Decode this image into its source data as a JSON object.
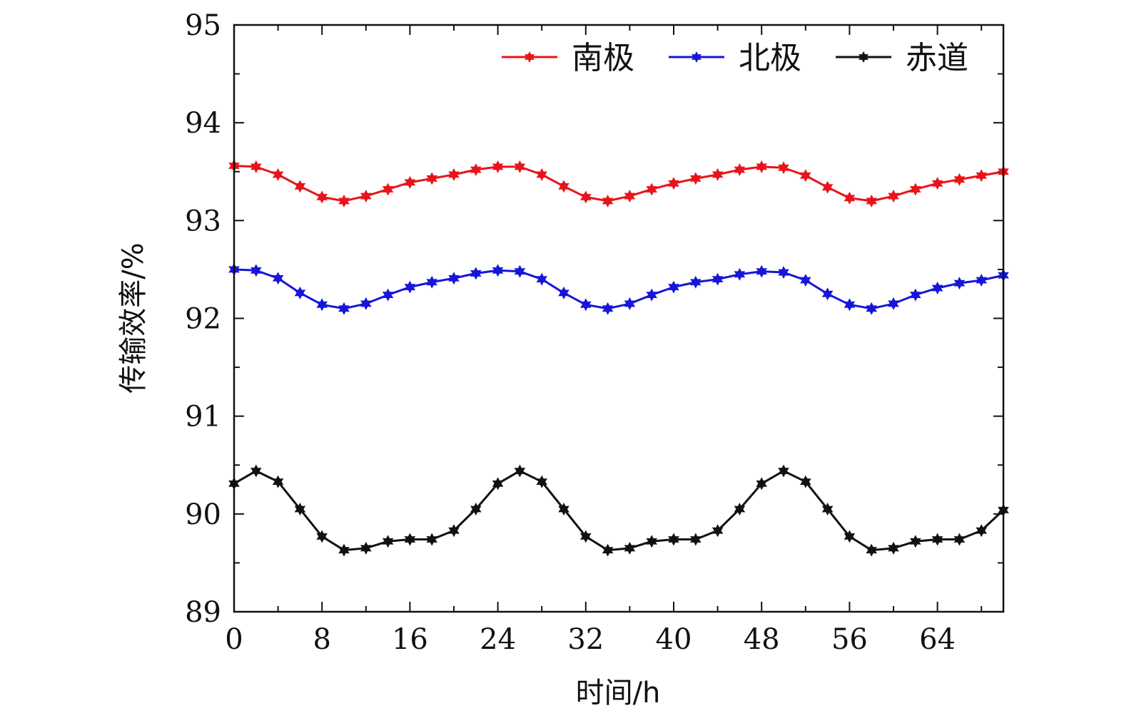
{
  "chart_data": {
    "type": "line",
    "title": "",
    "xlabel": "时间/h",
    "ylabel": "传输效率/%",
    "xlim": [
      0,
      70
    ],
    "ylim": [
      89,
      95
    ],
    "xticks": [
      "0",
      "8",
      "16",
      "24",
      "32",
      "40",
      "48",
      "56",
      "64"
    ],
    "yticks": [
      "89",
      "90",
      "91",
      "92",
      "93",
      "94",
      "95"
    ],
    "grid": false,
    "legend_position": "top-right",
    "x": [
      0,
      2,
      4,
      6,
      8,
      10,
      12,
      14,
      16,
      18,
      20,
      22,
      24,
      26,
      28,
      30,
      32,
      34,
      36,
      38,
      40,
      42,
      44,
      46,
      48,
      50,
      52,
      54,
      56,
      58,
      60,
      62,
      64,
      66,
      68,
      70
    ],
    "series": [
      {
        "name": "南极",
        "color": "#e8141b",
        "marker": "star",
        "values": [
          93.56,
          93.55,
          93.47,
          93.35,
          93.24,
          93.2,
          93.25,
          93.32,
          93.39,
          93.43,
          93.47,
          93.52,
          93.55,
          93.55,
          93.47,
          93.35,
          93.24,
          93.2,
          93.25,
          93.32,
          93.38,
          93.43,
          93.47,
          93.52,
          93.55,
          93.54,
          93.46,
          93.34,
          93.23,
          93.2,
          93.25,
          93.32,
          93.38,
          93.42,
          93.46,
          93.5
        ]
      },
      {
        "name": "北极",
        "color": "#1616d8",
        "marker": "star",
        "values": [
          92.5,
          92.49,
          92.41,
          92.26,
          92.14,
          92.1,
          92.15,
          92.24,
          92.32,
          92.37,
          92.41,
          92.46,
          92.49,
          92.48,
          92.4,
          92.26,
          92.14,
          92.1,
          92.15,
          92.24,
          92.32,
          92.37,
          92.4,
          92.45,
          92.48,
          92.47,
          92.39,
          92.25,
          92.14,
          92.1,
          92.15,
          92.24,
          92.31,
          92.36,
          92.39,
          92.44
        ]
      },
      {
        "name": "赤道",
        "color": "#111111",
        "marker": "star",
        "values": [
          90.31,
          90.44,
          90.33,
          90.05,
          89.77,
          89.63,
          89.65,
          89.72,
          89.74,
          89.74,
          89.83,
          90.05,
          90.31,
          90.44,
          90.33,
          90.05,
          89.77,
          89.63,
          89.65,
          89.72,
          89.74,
          89.74,
          89.83,
          90.05,
          90.31,
          90.44,
          90.33,
          90.05,
          89.77,
          89.63,
          89.65,
          89.72,
          89.74,
          89.74,
          89.83,
          90.04
        ]
      }
    ]
  }
}
